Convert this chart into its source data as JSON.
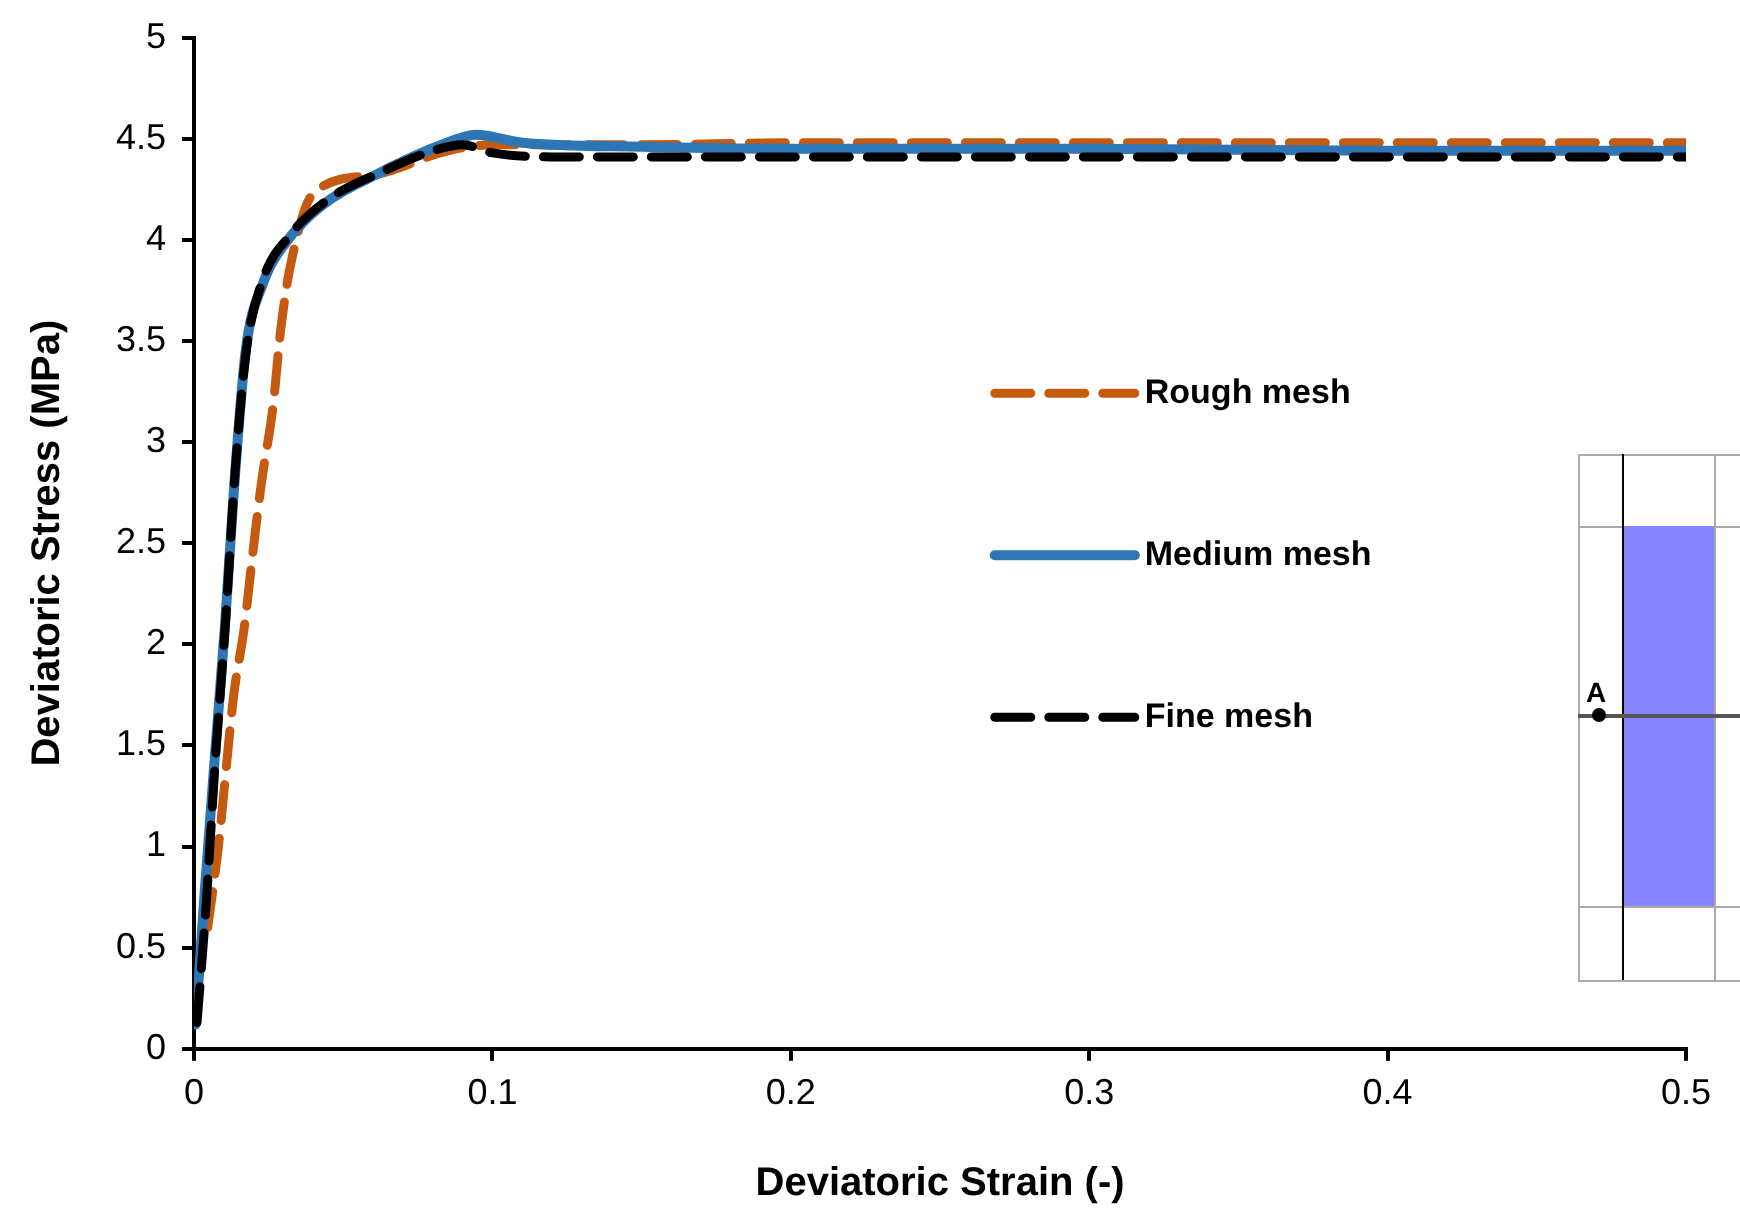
{
  "chart_data": {
    "type": "line",
    "xlabel": "Deviatoric Strain (-)",
    "ylabel": "Deviatoric Stress (MPa)",
    "xlim": [
      0,
      0.5
    ],
    "xticks": [
      0,
      0.1,
      0.2,
      0.3,
      0.4,
      0.5
    ],
    "ylim": [
      0,
      5
    ],
    "yticks": [
      0,
      0.5,
      1,
      1.5,
      2,
      2.5,
      3,
      3.5,
      4,
      4.5,
      5
    ],
    "grid": false,
    "legend": "right",
    "marker": "none",
    "annotations": [
      "A"
    ],
    "series": [
      {
        "name": "Rough mesh",
        "color": "#c55a11",
        "line_style": "dashed",
        "x": [
          0.0046,
          0.008,
          0.0134,
          0.0168,
          0.0196,
          0.0226,
          0.0265,
          0.029,
          0.032,
          0.04,
          0.06,
          0.085,
          0.1,
          0.15,
          0.2,
          0.3,
          0.4,
          0.5
        ],
        "values": [
          0.6,
          0.98,
          1.76,
          2.08,
          2.44,
          2.8,
          3.18,
          3.55,
          3.85,
          4.23,
          4.32,
          4.44,
          4.47,
          4.47,
          4.48,
          4.48,
          4.48,
          4.48
        ]
      },
      {
        "name": "Medium mesh",
        "color": "#2e75b6",
        "line_style": "solid",
        "x": [
          0.0005,
          0.0035,
          0.0069,
          0.0104,
          0.0134,
          0.0173,
          0.023,
          0.032,
          0.0437,
          0.062,
          0.083,
          0.0945,
          0.11,
          0.15,
          0.2,
          0.3,
          0.4,
          0.5
        ],
        "values": [
          0.12,
          0.76,
          1.43,
          2.1,
          2.77,
          3.45,
          3.78,
          4.01,
          4.18,
          4.33,
          4.47,
          4.52,
          4.48,
          4.46,
          4.45,
          4.45,
          4.44,
          4.44
        ]
      },
      {
        "name": "Fine mesh",
        "color": "#000000",
        "line_style": "dashed",
        "x": [
          0.001,
          0.004,
          0.007,
          0.0105,
          0.0135,
          0.0175,
          0.023,
          0.032,
          0.045,
          0.062,
          0.08,
          0.09,
          0.1,
          0.12,
          0.2,
          0.3,
          0.4,
          0.5
        ],
        "values": [
          0.13,
          0.7,
          1.4,
          2.1,
          2.8,
          3.45,
          3.8,
          4.02,
          4.2,
          4.33,
          4.44,
          4.47,
          4.43,
          4.41,
          4.41,
          4.41,
          4.41,
          4.41
        ]
      }
    ]
  }
}
